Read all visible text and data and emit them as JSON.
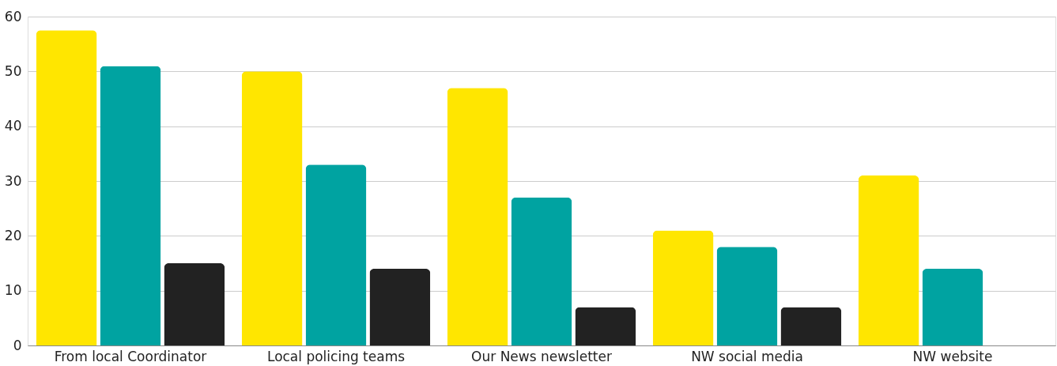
{
  "chart_data": {
    "type": "bar",
    "categories": [
      "From local Coordinator",
      "Local policing teams",
      "Our News newsletter",
      "NW social media",
      "NW website"
    ],
    "series": [
      {
        "color": "#ffe600",
        "values": [
          57.5,
          50,
          47,
          21,
          31
        ]
      },
      {
        "color": "#00a3a1",
        "values": [
          51,
          33,
          27,
          18,
          14
        ]
      },
      {
        "color": "#222222",
        "values": [
          15,
          14,
          7,
          7,
          null
        ]
      }
    ],
    "ylim": [
      0,
      60
    ],
    "yticks": [
      0,
      10,
      20,
      30,
      40,
      50,
      60
    ],
    "grid": "y",
    "legend": false
  }
}
